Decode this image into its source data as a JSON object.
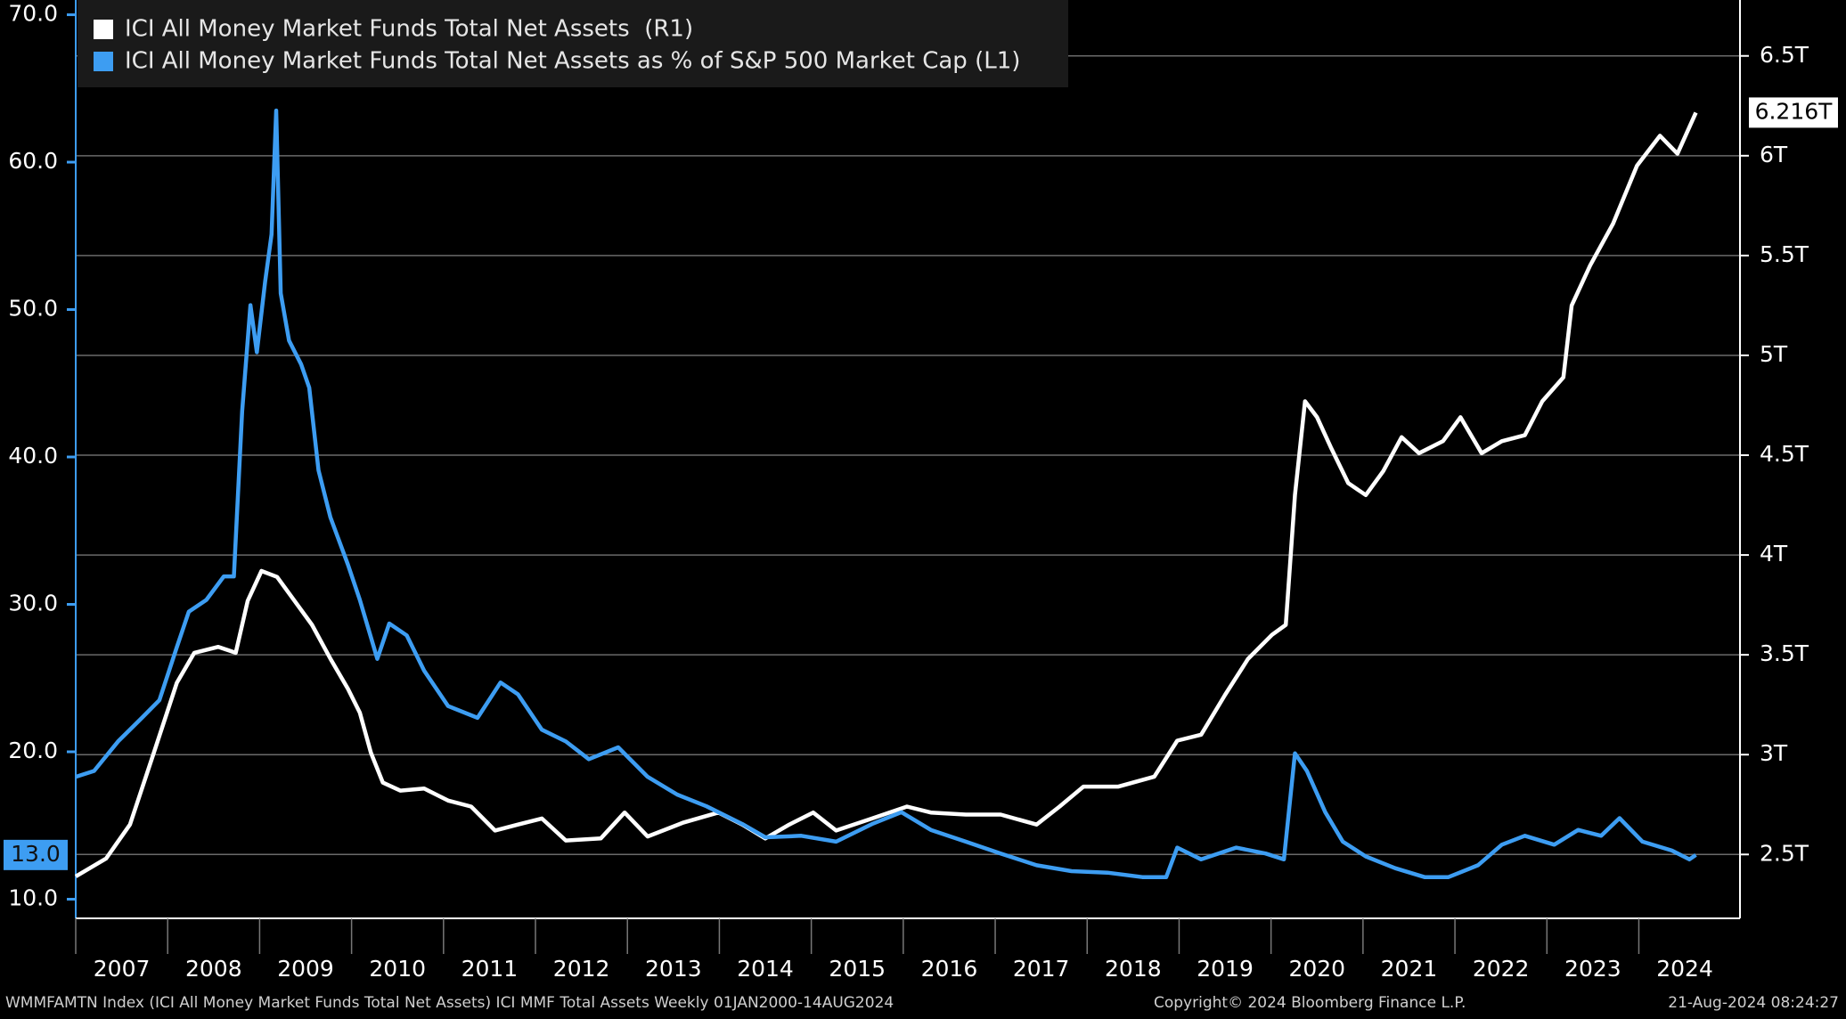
{
  "chart_data": {
    "type": "line",
    "series": [
      {
        "name": "ICI All Money Market Funds Total Net Assets  (R1)",
        "color": "#ffffff",
        "axis": "y2",
        "x": [
          2007.0,
          2007.33,
          2007.59,
          2007.85,
          2008.1,
          2008.29,
          2008.55,
          2008.74,
          2008.87,
          2009.02,
          2009.19,
          2009.38,
          2009.57,
          2009.77,
          2009.96,
          2010.09,
          2010.21,
          2010.34,
          2010.53,
          2010.79,
          2011.05,
          2011.3,
          2011.56,
          2011.81,
          2012.07,
          2012.33,
          2012.71,
          2012.97,
          2013.22,
          2013.61,
          2013.99,
          2014.25,
          2014.5,
          2014.76,
          2015.02,
          2015.27,
          2015.66,
          2016.04,
          2016.3,
          2016.68,
          2017.06,
          2017.45,
          2017.7,
          2017.96,
          2018.34,
          2018.73,
          2018.98,
          2019.24,
          2019.5,
          2019.75,
          2020.01,
          2020.16,
          2020.26,
          2020.37,
          2020.5,
          2020.65,
          2020.84,
          2021.03,
          2021.22,
          2021.42,
          2021.61,
          2021.87,
          2022.06,
          2022.29,
          2022.51,
          2022.76,
          2022.95,
          2023.18,
          2023.27,
          2023.47,
          2023.72,
          2023.98,
          2024.23,
          2024.42,
          2024.62
        ],
        "values": [
          2.39,
          2.48,
          2.65,
          3.01,
          3.36,
          3.51,
          3.54,
          3.51,
          3.77,
          3.92,
          3.89,
          3.77,
          3.65,
          3.48,
          3.33,
          3.21,
          3.01,
          2.86,
          2.82,
          2.83,
          2.77,
          2.74,
          2.62,
          2.65,
          2.68,
          2.57,
          2.58,
          2.71,
          2.59,
          2.66,
          2.71,
          2.65,
          2.58,
          2.65,
          2.71,
          2.62,
          2.68,
          2.74,
          2.71,
          2.7,
          2.7,
          2.65,
          2.74,
          2.84,
          2.84,
          2.89,
          3.07,
          3.1,
          3.3,
          3.48,
          3.6,
          3.65,
          4.3,
          4.77,
          4.69,
          4.54,
          4.36,
          4.3,
          4.42,
          4.59,
          4.51,
          4.57,
          4.69,
          4.51,
          4.57,
          4.6,
          4.77,
          4.89,
          5.25,
          5.45,
          5.66,
          5.95,
          6.1,
          6.01,
          6.216
        ],
        "value_labels": [
          null,
          null,
          null,
          null,
          null,
          null,
          null,
          null,
          null,
          null,
          null,
          null,
          null,
          null,
          null,
          null,
          null,
          null,
          null,
          null,
          null,
          null,
          null,
          null,
          null,
          null,
          null,
          null,
          null,
          null,
          null,
          null,
          null,
          null,
          null,
          null,
          null,
          null,
          null,
          null,
          null,
          null,
          null,
          null,
          null,
          null,
          null,
          null,
          null,
          null,
          null,
          null,
          null,
          null,
          null,
          null,
          null,
          null,
          null,
          null,
          null,
          null,
          null,
          null,
          null,
          null,
          null,
          null,
          null,
          null,
          null,
          null,
          null,
          null,
          "6.216T"
        ]
      },
      {
        "name": "ICI All Money Market Funds Total Net Assets as % of S&P 500 Market Cap (L1)",
        "color": "#3d9df2",
        "axis": "y",
        "x": [
          2007.0,
          2007.2,
          2007.46,
          2007.72,
          2007.91,
          2008.1,
          2008.23,
          2008.42,
          2008.61,
          2008.72,
          2008.81,
          2008.9,
          2008.97,
          2009.06,
          2009.13,
          2009.18,
          2009.23,
          2009.32,
          2009.45,
          2009.54,
          2009.64,
          2009.77,
          2009.96,
          2010.09,
          2010.28,
          2010.41,
          2010.6,
          2010.79,
          2011.05,
          2011.37,
          2011.62,
          2011.81,
          2012.07,
          2012.33,
          2012.58,
          2012.9,
          2013.22,
          2013.54,
          2013.86,
          2014.25,
          2014.5,
          2014.89,
          2015.27,
          2015.66,
          2015.98,
          2016.3,
          2016.68,
          2017.06,
          2017.45,
          2017.83,
          2018.22,
          2018.6,
          2018.86,
          2018.98,
          2019.24,
          2019.62,
          2019.94,
          2020.14,
          2020.26,
          2020.39,
          2020.59,
          2020.78,
          2021.03,
          2021.35,
          2021.67,
          2021.93,
          2022.25,
          2022.51,
          2022.76,
          2023.08,
          2023.34,
          2023.59,
          2023.79,
          2024.04,
          2024.36,
          2024.55,
          2024.62
        ],
        "values": [
          18.3,
          18.7,
          20.7,
          22.3,
          23.5,
          27.1,
          29.5,
          30.3,
          31.9,
          31.9,
          43.1,
          50.3,
          47.1,
          51.9,
          55.1,
          63.5,
          51.1,
          47.9,
          46.3,
          44.7,
          39.1,
          35.9,
          32.7,
          30.3,
          26.3,
          28.7,
          27.9,
          25.5,
          23.1,
          22.3,
          24.7,
          23.9,
          21.5,
          20.7,
          19.5,
          20.3,
          18.3,
          17.1,
          16.3,
          15.1,
          14.2,
          14.3,
          13.9,
          15.1,
          15.9,
          14.7,
          13.9,
          13.1,
          12.3,
          11.9,
          11.8,
          11.5,
          11.5,
          13.5,
          12.7,
          13.5,
          13.1,
          12.7,
          19.9,
          18.7,
          15.9,
          13.9,
          12.9,
          12.1,
          11.5,
          11.5,
          12.3,
          13.7,
          14.3,
          13.7,
          14.7,
          14.3,
          15.5,
          13.9,
          13.3,
          12.7,
          13.0
        ],
        "value_labels": [
          null,
          null,
          null,
          null,
          null,
          null,
          null,
          null,
          null,
          null,
          null,
          null,
          null,
          null,
          null,
          null,
          null,
          null,
          null,
          null,
          null,
          null,
          null,
          null,
          null,
          null,
          null,
          null,
          null,
          null,
          null,
          null,
          null,
          null,
          null,
          null,
          null,
          null,
          null,
          null,
          null,
          null,
          null,
          null,
          null,
          null,
          null,
          null,
          null,
          null,
          null,
          null,
          null,
          null,
          null,
          null,
          null,
          null,
          null,
          null,
          null,
          null,
          null,
          null,
          null,
          null,
          null,
          null,
          null,
          null,
          null,
          null,
          null,
          null,
          null,
          null,
          "13.0"
        ]
      }
    ],
    "xlim": [
      2007,
      2025.1
    ],
    "xticks": [
      {
        "value": 2007,
        "label": "2007"
      },
      {
        "value": 2008,
        "label": "2008"
      },
      {
        "value": 2009,
        "label": "2009"
      },
      {
        "value": 2010,
        "label": "2010"
      },
      {
        "value": 2011,
        "label": "2011"
      },
      {
        "value": 2012,
        "label": "2012"
      },
      {
        "value": 2013,
        "label": "2013"
      },
      {
        "value": 2014,
        "label": "2014"
      },
      {
        "value": 2015,
        "label": "2015"
      },
      {
        "value": 2016,
        "label": "2016"
      },
      {
        "value": 2017,
        "label": "2017"
      },
      {
        "value": 2018,
        "label": "2018"
      },
      {
        "value": 2019,
        "label": "2019"
      },
      {
        "value": 2020,
        "label": "2020"
      },
      {
        "value": 2021,
        "label": "2021"
      },
      {
        "value": 2022,
        "label": "2022"
      },
      {
        "value": 2023,
        "label": "2023"
      },
      {
        "value": 2024,
        "label": "2024"
      }
    ],
    "ylim": [
      8.7,
      71.0
    ],
    "yticks": [
      {
        "value": 10,
        "label": "10.0"
      },
      {
        "value": 20,
        "label": "20.0"
      },
      {
        "value": 30,
        "label": "30.0"
      },
      {
        "value": 40,
        "label": "40.0"
      },
      {
        "value": 50,
        "label": "50.0"
      },
      {
        "value": 60,
        "label": "60.0"
      },
      {
        "value": 70,
        "label": "70.0"
      }
    ],
    "y2lim": [
      2.18,
      6.78
    ],
    "y2ticks": [
      {
        "value": 2.5,
        "label": "2.5T"
      },
      {
        "value": 3,
        "label": "3T"
      },
      {
        "value": 3.5,
        "label": "3.5T"
      },
      {
        "value": 4,
        "label": "4T"
      },
      {
        "value": 4.5,
        "label": "4.5T"
      },
      {
        "value": 5,
        "label": "5T"
      },
      {
        "value": 5.5,
        "label": "5.5T"
      },
      {
        "value": 6,
        "label": "6T"
      },
      {
        "value": 6.5,
        "label": "6.5T"
      }
    ],
    "grid": "y2",
    "legend": "top-left",
    "source_note": "WMMFAMTN Index (ICI All Money Market Funds Total Net Assets) ICI MMF Total Assets  Weekly 01JAN2000-14AUG2024",
    "copyright": "Copyright© 2024 Bloomberg Finance L.P.",
    "timestamp": "21-Aug-2024 08:24:27"
  }
}
